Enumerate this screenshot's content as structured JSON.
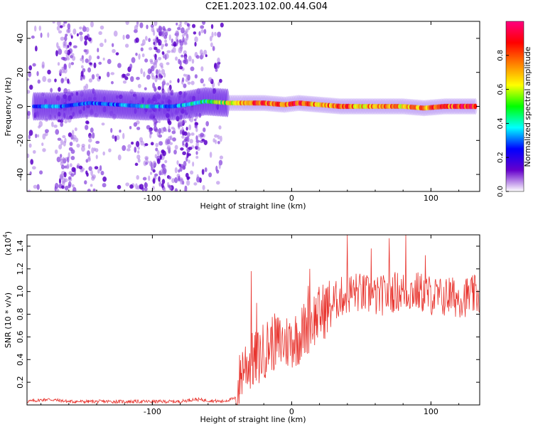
{
  "title": "C2E1.2023.102.00.44.G04",
  "chart_data": [
    {
      "type": "heatmap",
      "description_of_marks": "spectrogram",
      "xlabel": "Height of straight line (km)",
      "ylabel": "Frequency (Hz)",
      "xlim": [
        -190,
        135
      ],
      "ylim": [
        -50,
        50
      ],
      "x_ticks": [
        -100,
        0,
        100
      ],
      "y_ticks": [
        -40,
        -20,
        0,
        20,
        40
      ],
      "colorbar": {
        "label": "Normalized spectral amplitude",
        "range": [
          0.0,
          1.0
        ],
        "ticks": [
          "0.0",
          "0.2",
          "0.4",
          "0.6",
          "0.8"
        ],
        "colors": [
          "#ffffff",
          "#6600cc",
          "#0000ff",
          "#00ffff",
          "#00ff00",
          "#ffff00",
          "#ff8000",
          "#ff0000",
          "#ff0080"
        ]
      },
      "features": {
        "scatter_region_x": [
          -190,
          -50
        ],
        "main_band_freq_hz": 0,
        "band_segments": [
          {
            "x": -185,
            "f": 0,
            "amp": 0.25
          },
          {
            "x": -175,
            "f": 0,
            "amp": 0.4
          },
          {
            "x": -165,
            "f": 0,
            "amp": 0.3
          },
          {
            "x": -145,
            "f": 2,
            "amp": 0.3
          },
          {
            "x": -125,
            "f": 1,
            "amp": 0.3
          },
          {
            "x": -105,
            "f": 0,
            "amp": 0.4
          },
          {
            "x": -85,
            "f": 0,
            "amp": 0.3
          },
          {
            "x": -75,
            "f": 1,
            "amp": 0.4
          },
          {
            "x": -62,
            "f": 3,
            "amp": 0.45
          },
          {
            "x": -45,
            "f": 2,
            "amp": 0.6
          },
          {
            "x": -35,
            "f": 2,
            "amp": 0.75
          },
          {
            "x": -20,
            "f": 2,
            "amp": 0.85
          },
          {
            "x": -5,
            "f": 1,
            "amp": 0.8
          },
          {
            "x": 5,
            "f": 2,
            "amp": 0.9
          },
          {
            "x": 20,
            "f": 1,
            "amp": 0.7
          },
          {
            "x": 35,
            "f": 0,
            "amp": 0.85
          },
          {
            "x": 50,
            "f": 0,
            "amp": 0.7
          },
          {
            "x": 65,
            "f": 0,
            "amp": 0.75
          },
          {
            "x": 80,
            "f": 0,
            "amp": 0.7
          },
          {
            "x": 95,
            "f": -1,
            "amp": 0.75
          },
          {
            "x": 110,
            "f": 0,
            "amp": 0.8
          },
          {
            "x": 125,
            "f": 0,
            "amp": 0.9
          },
          {
            "x": 133,
            "f": 0,
            "amp": 0.9
          }
        ]
      }
    },
    {
      "type": "line",
      "xlabel": "Height of straight line (km)",
      "ylabel": "SNR (10 * v/v)",
      "yscale_label": "(x10",
      "yscale_exp": "4",
      "xlim": [
        -190,
        135
      ],
      "ylim": [
        0,
        1.5
      ],
      "x_ticks": [
        -100,
        0,
        100
      ],
      "y_ticks": [
        0.2,
        0.4,
        0.6,
        0.8,
        1.0,
        1.2,
        1.4
      ],
      "series_color": "#e8342e",
      "trend": [
        {
          "x": -190,
          "y": 0.03
        },
        {
          "x": -175,
          "y": 0.05
        },
        {
          "x": -160,
          "y": 0.03
        },
        {
          "x": -120,
          "y": 0.03
        },
        {
          "x": -80,
          "y": 0.03
        },
        {
          "x": -70,
          "y": 0.05
        },
        {
          "x": -50,
          "y": 0.03
        },
        {
          "x": -40,
          "y": 0.06
        },
        {
          "x": -35,
          "y": 0.35
        },
        {
          "x": -25,
          "y": 0.4
        },
        {
          "x": -15,
          "y": 0.55
        },
        {
          "x": -5,
          "y": 0.55
        },
        {
          "x": 5,
          "y": 0.6
        },
        {
          "x": 15,
          "y": 0.75
        },
        {
          "x": 25,
          "y": 0.85
        },
        {
          "x": 35,
          "y": 0.95
        },
        {
          "x": 45,
          "y": 1.0
        },
        {
          "x": 60,
          "y": 0.95
        },
        {
          "x": 75,
          "y": 1.0
        },
        {
          "x": 90,
          "y": 1.0
        },
        {
          "x": 105,
          "y": 0.95
        },
        {
          "x": 120,
          "y": 0.95
        },
        {
          "x": 135,
          "y": 0.97
        }
      ],
      "spikes": [
        {
          "x": -29,
          "y": 1.18
        },
        {
          "x": -25,
          "y": 0.9
        },
        {
          "x": 12,
          "y": 1.05
        },
        {
          "x": 13,
          "y": 1.2
        },
        {
          "x": 40,
          "y": 1.5
        },
        {
          "x": 57,
          "y": 1.38
        },
        {
          "x": 70,
          "y": 1.47
        },
        {
          "x": 82,
          "y": 1.5
        },
        {
          "x": 96,
          "y": 1.32
        },
        {
          "x": 113,
          "y": 1.12
        }
      ]
    }
  ]
}
